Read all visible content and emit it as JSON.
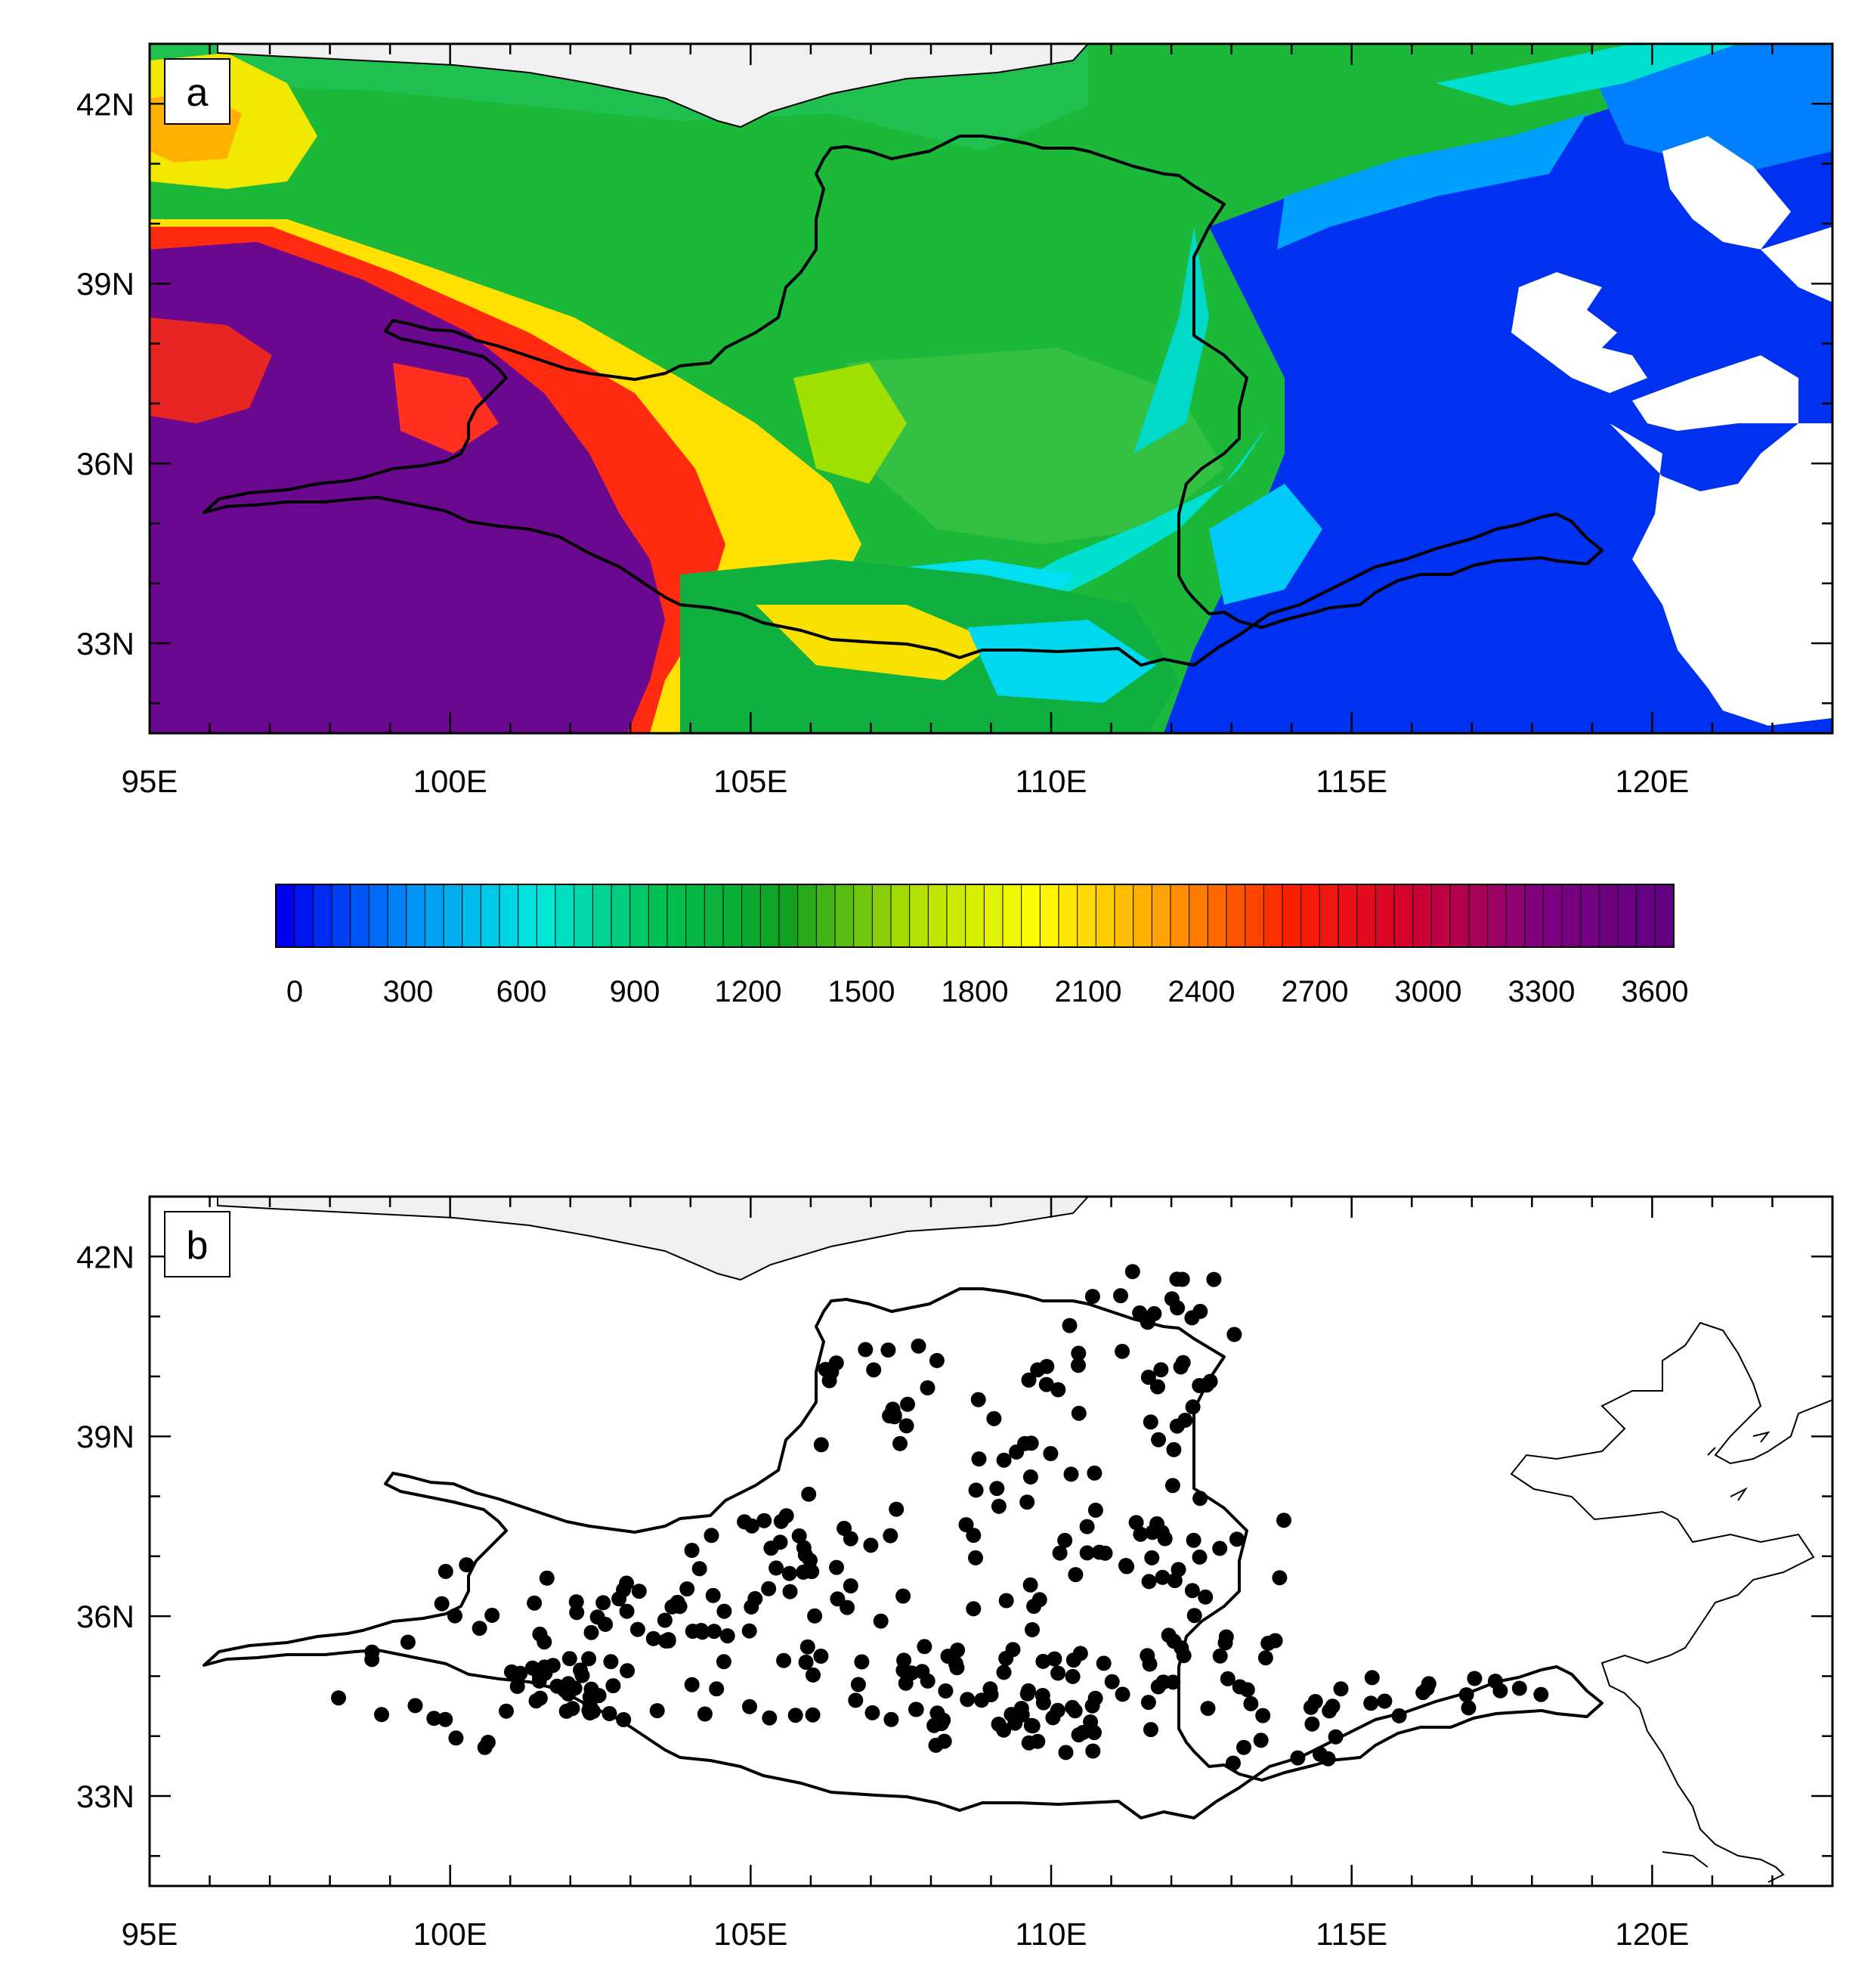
{
  "panels": [
    {
      "id": "a",
      "label": "a",
      "kind": "elevation-map",
      "lon_range": [
        95,
        123
      ],
      "lat_range": [
        31.5,
        43
      ],
      "x_tick_labels": [
        "95E",
        "100E",
        "105E",
        "110E",
        "115E",
        "120E"
      ],
      "y_tick_labels": [
        "42N",
        "39N",
        "36N",
        "33N"
      ]
    },
    {
      "id": "b",
      "label": "b",
      "kind": "station-map",
      "lon_range": [
        95,
        123
      ],
      "lat_range": [
        31.5,
        43
      ],
      "x_tick_labels": [
        "95E",
        "100E",
        "105E",
        "110E",
        "115E",
        "120E"
      ],
      "y_tick_labels": [
        "42N",
        "39N",
        "36N",
        "33N"
      ]
    }
  ],
  "colorbar": {
    "tick_labels": [
      "0",
      "300",
      "600",
      "900",
      "1200",
      "1500",
      "1800",
      "2100",
      "2400",
      "2700",
      "3000",
      "3300",
      "3600"
    ],
    "color_stops": [
      "#0000f0",
      "#0090f8",
      "#00e8e0",
      "#00c050",
      "#10a020",
      "#b0e000",
      "#ffff00",
      "#ffa000",
      "#ff2000",
      "#d00030",
      "#800080",
      "#600080"
    ],
    "n_bins": 75
  },
  "colors": {
    "frame": "#000000",
    "basin_outline": "#000000",
    "mask_fill": "#f0f0f0",
    "station_dot": "#000000"
  }
}
